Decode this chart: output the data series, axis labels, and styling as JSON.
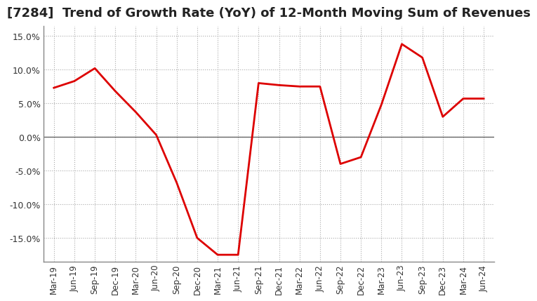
{
  "title": "[7284]  Trend of Growth Rate (YoY) of 12-Month Moving Sum of Revenues",
  "title_fontsize": 13,
  "line_color": "#dd0000",
  "background_color": "#ffffff",
  "plot_bg_color": "#ffffff",
  "grid_color": "#aaaaaa",
  "ylim": [
    -0.185,
    0.165
  ],
  "yticks": [
    -0.15,
    -0.1,
    -0.05,
    0.0,
    0.05,
    0.1,
    0.15
  ],
  "x_labels": [
    "Mar-19",
    "Jun-19",
    "Sep-19",
    "Dec-19",
    "Mar-20",
    "Jun-20",
    "Sep-20",
    "Dec-20",
    "Mar-21",
    "Jun-21",
    "Sep-21",
    "Dec-21",
    "Mar-22",
    "Jun-22",
    "Sep-22",
    "Dec-22",
    "Mar-23",
    "Jun-23",
    "Sep-23",
    "Dec-23",
    "Mar-24",
    "Jun-24"
  ],
  "y_values": [
    0.073,
    0.083,
    0.102,
    0.068,
    0.037,
    0.003,
    -0.068,
    -0.15,
    -0.175,
    -0.175,
    0.08,
    0.077,
    0.075,
    0.075,
    -0.04,
    -0.03,
    0.048,
    0.138,
    0.118,
    0.03,
    0.057,
    0.057
  ]
}
